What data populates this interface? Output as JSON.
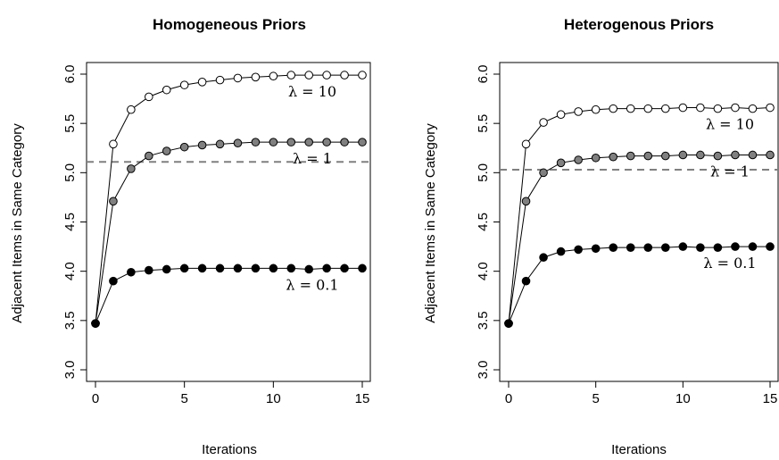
{
  "chart_data": [
    {
      "type": "line",
      "title": "Homogeneous Priors",
      "xlabel": "Iterations",
      "ylabel": "Adjacent Items in Same Category",
      "xlim": [
        0,
        15
      ],
      "ylim": [
        3.0,
        6.0
      ],
      "x_ticks": [
        0,
        5,
        10,
        15
      ],
      "y_ticks": [
        3.0,
        3.5,
        4.0,
        4.5,
        5.0,
        5.5,
        6.0
      ],
      "x_tick_labels": [
        "0",
        "5",
        "10",
        "15"
      ],
      "y_tick_labels": [
        "3.0",
        "3.5",
        "4.0",
        "4.5",
        "5.0",
        "5.5",
        "6.0"
      ],
      "grid": false,
      "x": [
        0,
        1,
        2,
        3,
        4,
        5,
        6,
        7,
        8,
        9,
        10,
        11,
        12,
        13,
        14,
        15
      ],
      "reference_line": {
        "y": 5.11,
        "style": "dashed",
        "color": "#808080"
      },
      "series": [
        {
          "name": "λ = 10",
          "marker_fill": "#ffffff",
          "values": [
            3.47,
            5.29,
            5.64,
            5.77,
            5.84,
            5.89,
            5.92,
            5.94,
            5.96,
            5.97,
            5.98,
            5.99,
            5.99,
            5.99,
            5.99,
            5.99
          ]
        },
        {
          "name": "λ = 1",
          "marker_fill": "#808080",
          "values": [
            3.47,
            4.71,
            5.04,
            5.17,
            5.22,
            5.26,
            5.28,
            5.29,
            5.3,
            5.31,
            5.31,
            5.31,
            5.31,
            5.31,
            5.31,
            5.31
          ]
        },
        {
          "name": "λ = 0.1",
          "marker_fill": "#000000",
          "values": [
            3.47,
            3.9,
            3.99,
            4.01,
            4.02,
            4.03,
            4.03,
            4.03,
            4.03,
            4.03,
            4.03,
            4.03,
            4.02,
            4.03,
            4.03,
            4.03
          ]
        }
      ]
    },
    {
      "type": "line",
      "title": "Heterogenous Priors",
      "xlabel": "Iterations",
      "ylabel": "Adjacent Items in Same Category",
      "xlim": [
        0,
        15
      ],
      "ylim": [
        3.0,
        6.0
      ],
      "x_ticks": [
        0,
        5,
        10,
        15
      ],
      "y_ticks": [
        3.0,
        3.5,
        4.0,
        4.5,
        5.0,
        5.5,
        6.0
      ],
      "x_tick_labels": [
        "0",
        "5",
        "10",
        "15"
      ],
      "y_tick_labels": [
        "3.0",
        "3.5",
        "4.0",
        "4.5",
        "5.0",
        "5.5",
        "6.0"
      ],
      "grid": false,
      "x": [
        0,
        1,
        2,
        3,
        4,
        5,
        6,
        7,
        8,
        9,
        10,
        11,
        12,
        13,
        14,
        15
      ],
      "reference_line": {
        "y": 5.03,
        "style": "dashed",
        "color": "#808080"
      },
      "series": [
        {
          "name": "λ = 10",
          "marker_fill": "#ffffff",
          "values": [
            3.47,
            5.29,
            5.51,
            5.59,
            5.62,
            5.64,
            5.65,
            5.65,
            5.65,
            5.65,
            5.66,
            5.66,
            5.65,
            5.66,
            5.65,
            5.66
          ]
        },
        {
          "name": "λ = 1",
          "marker_fill": "#808080",
          "values": [
            3.47,
            4.71,
            5.0,
            5.1,
            5.13,
            5.15,
            5.16,
            5.17,
            5.17,
            5.17,
            5.18,
            5.18,
            5.17,
            5.18,
            5.18,
            5.18
          ]
        },
        {
          "name": "λ = 0.1",
          "marker_fill": "#000000",
          "values": [
            3.47,
            3.9,
            4.14,
            4.2,
            4.22,
            4.23,
            4.24,
            4.24,
            4.24,
            4.24,
            4.25,
            4.24,
            4.24,
            4.25,
            4.25,
            4.25
          ]
        }
      ]
    }
  ]
}
